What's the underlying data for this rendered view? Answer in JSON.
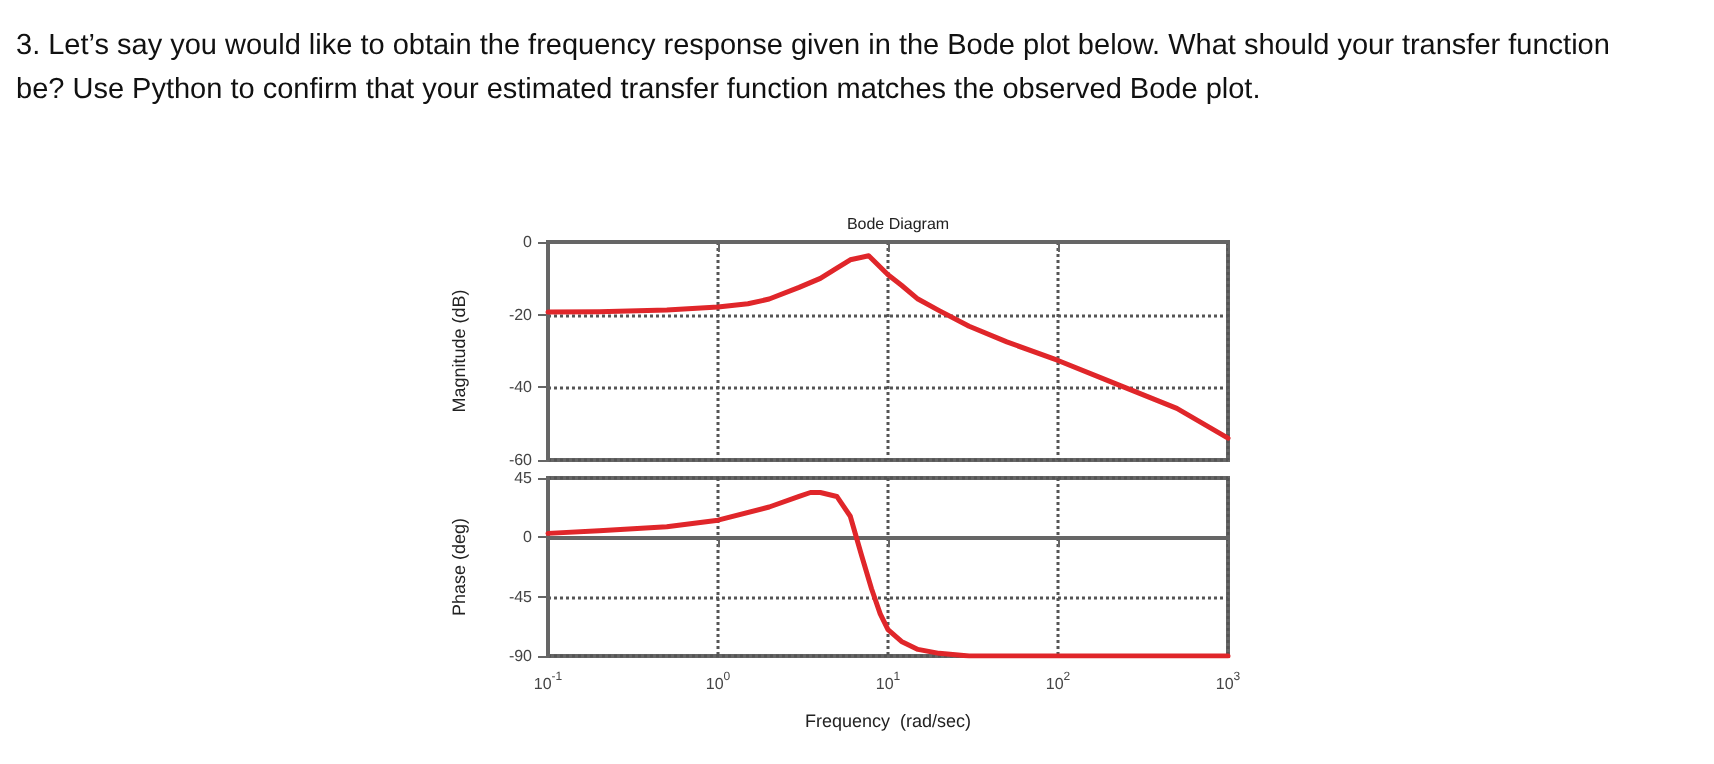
{
  "chart_data": [
    {
      "type": "line",
      "title": "Bode Diagram",
      "annotations": [
        "3. Let’s say you would like to obtain the frequency response given in the Bode plot below. What should your transfer function be? Use Python to confirm that your estimated transfer function matches the observed Bode plot."
      ],
      "ylabel": "Magnitude (dB)",
      "log": "x",
      "xlim": [
        0.1,
        1000
      ],
      "xticks": [
        {
          "value": 0.1,
          "label": null
        },
        {
          "value": 1,
          "label": null
        },
        {
          "value": 10,
          "label": null
        },
        {
          "value": 100,
          "label": null
        },
        {
          "value": 1000,
          "label": null
        }
      ],
      "ylim": [
        -60,
        0
      ],
      "yticks": [
        0,
        -20,
        -40,
        -60
      ],
      "tick_labels": "y",
      "grid": true,
      "marker": "none",
      "x": [
        0.1,
        0.2,
        0.5,
        1,
        1.5,
        2,
        3,
        4,
        5,
        6,
        7.7,
        10,
        12,
        15,
        20,
        30,
        50,
        100,
        200,
        500,
        1000
      ],
      "series": [
        {
          "color": "#e0262a",
          "values": [
            -19.3,
            -19.2,
            -18.7,
            -17.9,
            -17.0,
            -15.7,
            -12.5,
            -10,
            -7.2,
            -4.9,
            -3.8,
            -9,
            -11.9,
            -15.7,
            -18.9,
            -23.2,
            -27.5,
            -32.6,
            -38.3,
            -45.8,
            -54
          ]
        }
      ]
    },
    {
      "type": "line",
      "xlabel": "Frequency  (rad/sec)",
      "ylabel": "Phase (deg)",
      "log": "x",
      "xlim": [
        0.1,
        1000
      ],
      "xticks": [
        {
          "value": 0.1,
          "label": "10$^{-1}$"
        },
        {
          "value": 1,
          "label": "10$^{0}$"
        },
        {
          "value": 10,
          "label": "10$^{1}$"
        },
        {
          "value": 100,
          "label": "10$^{2}$"
        },
        {
          "value": 1000,
          "label": "10$^{3}$"
        }
      ],
      "ylim": [
        -90,
        45
      ],
      "yticks": [
        -90,
        -45,
        0,
        45
      ],
      "grid": true,
      "marker": "none",
      "x": [
        0.1,
        0.2,
        0.5,
        1,
        2,
        3,
        3.5,
        4,
        5,
        6,
        7,
        8,
        9,
        10,
        12,
        15,
        20,
        30,
        100,
        1000
      ],
      "series": [
        {
          "color": "#e0262a",
          "values": [
            3,
            5,
            8,
            13,
            23,
            31,
            34,
            34,
            31,
            16,
            -14,
            -39,
            -58,
            -70,
            -79,
            -85,
            -88,
            -90,
            -90,
            -90
          ]
        }
      ]
    }
  ]
}
